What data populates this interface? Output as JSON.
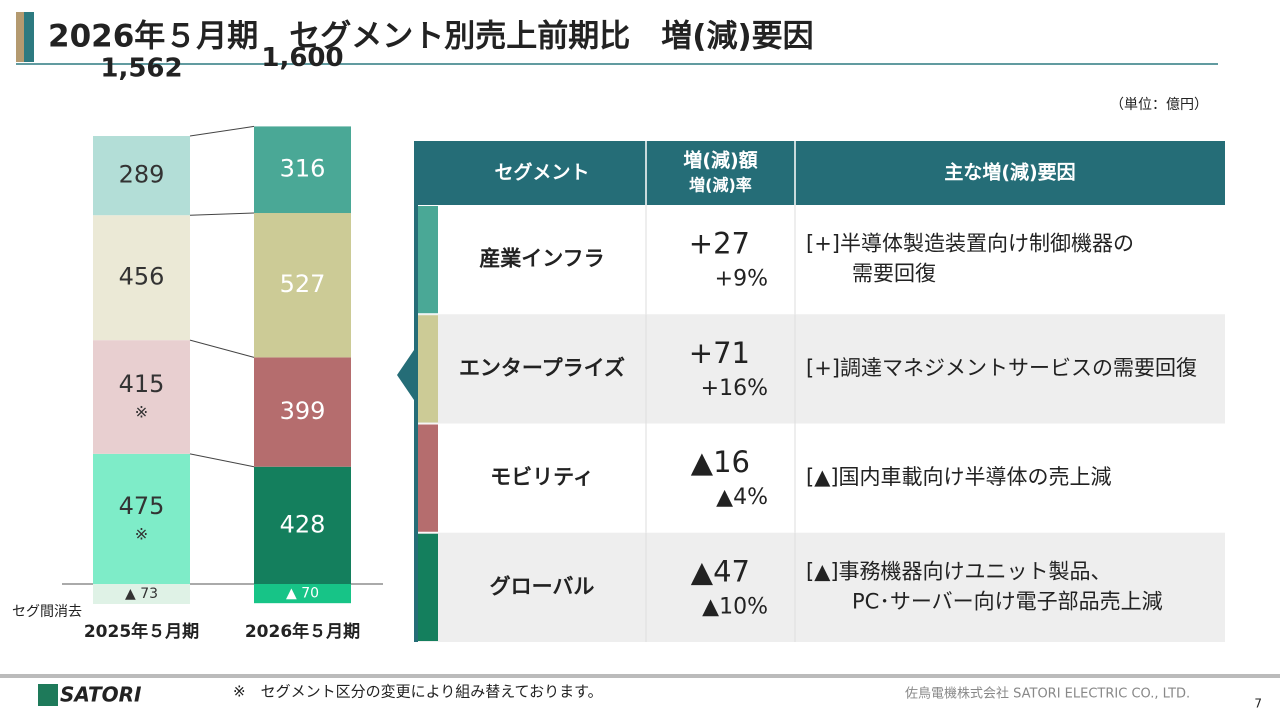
{
  "header": {
    "title": "2026年５月期　セグメント別売上前期比　増(減)要因",
    "unit": "（単位：億円）"
  },
  "chart_data": {
    "type": "bar",
    "stacked": true,
    "categories": [
      "2025年５月期",
      "2026年５月期"
    ],
    "series": [
      {
        "colors": [
          "#7eecc8",
          "#147f5d"
        ],
        "values": [
          475,
          428
        ],
        "notes": [
          "※",
          null
        ]
      },
      {
        "colors": [
          "#e8cfd0",
          "#b56d6e"
        ],
        "values": [
          415,
          399
        ],
        "notes": [
          "※",
          null
        ]
      },
      {
        "colors": [
          "#ebe9d6",
          "#cccb96"
        ],
        "values": [
          456,
          527
        ]
      },
      {
        "colors": [
          "#b3ded7",
          "#4aa896"
        ],
        "values": [
          289,
          316
        ]
      },
      {
        "colors": [
          "#dff2e6",
          "#17c487"
        ],
        "values": [
          -73,
          -70
        ],
        "value_labels": [
          "▲ 73",
          "▲ 70"
        ]
      }
    ],
    "totals": [
      1562,
      1600
    ],
    "total_labels": [
      "1,562",
      "1,600"
    ],
    "elimination_label": "セグ間消去"
  },
  "table": {
    "header": [
      "セグメント",
      [
        "増(減)額",
        "増(減)率"
      ],
      "主な増(減)要因"
    ],
    "rows": [
      {
        "color": "#4aa896",
        "segment": "産業インフラ",
        "amount": "+27",
        "rate": "+9%",
        "reason": [
          "[+]半導体製造装置向け制御機器の",
          "需要回復"
        ]
      },
      {
        "color": "#cccb96",
        "segment": "エンタープライズ",
        "amount": "+71",
        "rate": "+16%",
        "reason": [
          "[+]調達マネジメントサービスの需要回復"
        ]
      },
      {
        "color": "#b56d6e",
        "segment": "モビリティ",
        "amount": "▲16",
        "rate": "▲4%",
        "reason": [
          "[▲]国内車載向け半導体の売上減"
        ]
      },
      {
        "color": "#147f5d",
        "segment": "グローバル",
        "amount": "▲47",
        "rate": "▲10%",
        "reason": [
          "[▲]事務機器向けユニット製品、",
          "PC･サーバー向け電子部品売上減"
        ]
      }
    ]
  },
  "footer": {
    "logo": "SATORI",
    "note": "※　セグメント区分の変更により組み替えております。",
    "company": "佐鳥電機株式会社  SATORI ELECTRIC CO., LTD.",
    "page": "7"
  }
}
